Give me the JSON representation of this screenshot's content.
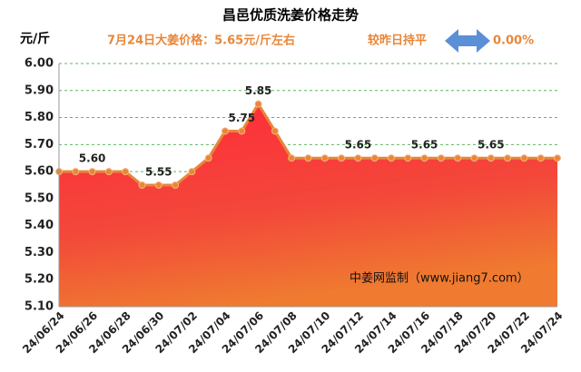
{
  "chart_data": {
    "type": "area",
    "title": "昌邑优质洗姜价格走势",
    "y_label": "元/斤",
    "subtitle": "7月24日大姜价格：5.65元/斤左右",
    "change_label": "较昨日持平",
    "change_value": "0.00%",
    "watermark": "中姜网监制（www.jiang7.com）",
    "categories": [
      "24/06/24",
      null,
      "24/06/26",
      null,
      "24/06/28",
      null,
      "24/06/30",
      null,
      "24/07/02",
      null,
      "24/07/04",
      null,
      "24/07/06",
      null,
      "24/07/08",
      null,
      "24/07/10",
      null,
      "24/07/12",
      null,
      "24/07/14",
      null,
      "24/07/16",
      null,
      "24/07/18",
      null,
      "24/07/20",
      null,
      "24/07/22",
      null,
      "24/07/24"
    ],
    "values": [
      5.6,
      5.6,
      5.6,
      5.6,
      5.6,
      5.55,
      5.55,
      5.55,
      5.6,
      5.65,
      5.75,
      5.75,
      5.85,
      5.75,
      5.65,
      5.65,
      5.65,
      5.65,
      5.65,
      5.65,
      5.65,
      5.65,
      5.65,
      5.65,
      5.65,
      5.65,
      5.65,
      5.65,
      5.65,
      5.65,
      5.65
    ],
    "value_labels": [
      null,
      null,
      "5.60",
      null,
      null,
      null,
      "5.55",
      null,
      null,
      null,
      null,
      "5.75",
      "5.85",
      null,
      null,
      null,
      null,
      null,
      "5.65",
      null,
      null,
      null,
      "5.65",
      null,
      null,
      null,
      "5.65",
      null,
      null,
      null,
      null
    ],
    "color": "#e8873a",
    "ylim": [
      5.1,
      6.0
    ],
    "yticks": [
      {
        "value": 5.1,
        "label": "5.10"
      },
      {
        "value": 5.2,
        "label": "5.20"
      },
      {
        "value": 5.3,
        "label": "5.30"
      },
      {
        "value": 5.4,
        "label": "5.40"
      },
      {
        "value": 5.5,
        "label": "5.50"
      },
      {
        "value": 5.6,
        "label": "5.60"
      },
      {
        "value": 5.7,
        "label": "5.70"
      },
      {
        "value": 5.8,
        "label": "5.80"
      },
      {
        "value": 5.9,
        "label": "5.90"
      },
      {
        "value": 6.0,
        "label": "6.00"
      }
    ],
    "grid": true
  }
}
